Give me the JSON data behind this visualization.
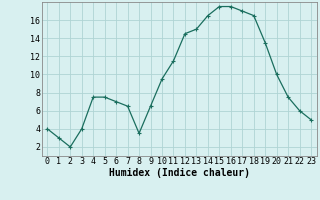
{
  "x": [
    0,
    1,
    2,
    3,
    4,
    5,
    6,
    7,
    8,
    9,
    10,
    11,
    12,
    13,
    14,
    15,
    16,
    17,
    18,
    19,
    20,
    21,
    22,
    23
  ],
  "y": [
    4,
    3,
    2,
    4,
    7.5,
    7.5,
    7,
    6.5,
    3.5,
    6.5,
    9.5,
    11.5,
    14.5,
    15,
    16.5,
    17.5,
    17.5,
    17,
    16.5,
    13.5,
    10,
    7.5,
    6,
    5
  ],
  "line_color": "#1a6e5e",
  "marker": "+",
  "marker_size": 3,
  "marker_lw": 0.8,
  "line_width": 0.9,
  "bg_color": "#d8f0f0",
  "grid_color": "#afd4d4",
  "xlabel": "Humidex (Indice chaleur)",
  "xlabel_fontsize": 7,
  "tick_fontsize": 6,
  "xlim": [
    -0.5,
    23.5
  ],
  "ylim": [
    1,
    18
  ],
  "yticks": [
    2,
    4,
    6,
    8,
    10,
    12,
    14,
    16
  ],
  "xticks": [
    0,
    1,
    2,
    3,
    4,
    5,
    6,
    7,
    8,
    9,
    10,
    11,
    12,
    13,
    14,
    15,
    16,
    17,
    18,
    19,
    20,
    21,
    22,
    23
  ]
}
